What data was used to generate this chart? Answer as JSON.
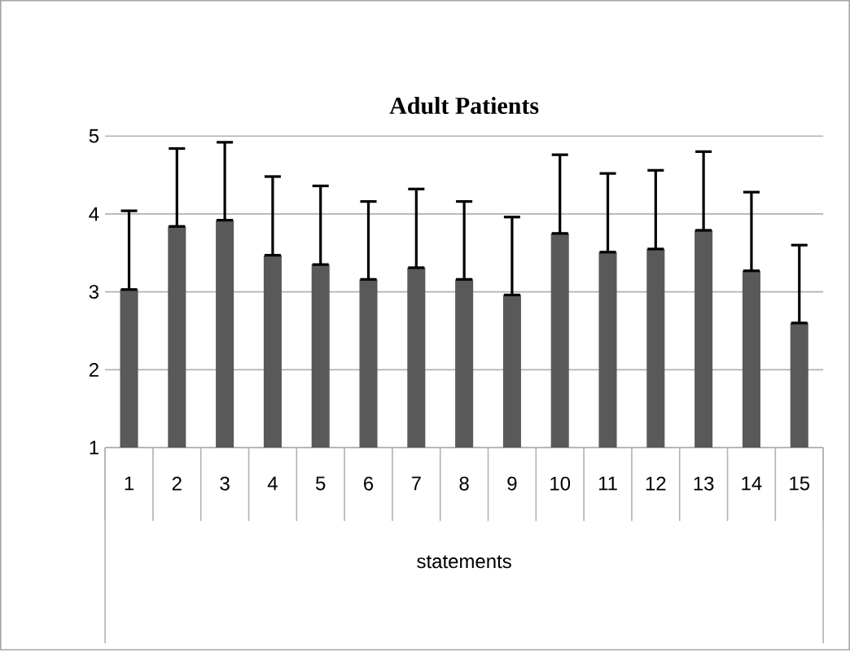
{
  "chart_data": {
    "type": "bar",
    "title": "Adult Patients",
    "xlabel": "statements",
    "categories": [
      "1",
      "2",
      "3",
      "4",
      "5",
      "6",
      "7",
      "8",
      "9",
      "10",
      "11",
      "12",
      "13",
      "14",
      "15"
    ],
    "values": [
      3.03,
      3.84,
      3.92,
      3.47,
      3.35,
      3.16,
      3.31,
      3.16,
      2.96,
      3.75,
      3.51,
      3.55,
      3.79,
      3.27,
      2.6
    ],
    "errors": [
      [
        3.03,
        4.04
      ],
      [
        3.84,
        4.84
      ],
      [
        3.92,
        4.92
      ],
      [
        3.47,
        4.48
      ],
      [
        3.35,
        4.36
      ],
      [
        3.16,
        4.16
      ],
      [
        3.31,
        4.32
      ],
      [
        3.16,
        4.16
      ],
      [
        2.96,
        3.96
      ],
      [
        3.75,
        4.76
      ],
      [
        3.51,
        4.52
      ],
      [
        3.55,
        4.56
      ],
      [
        3.79,
        4.8
      ],
      [
        3.27,
        4.28
      ],
      [
        2.6,
        3.6
      ]
    ],
    "color": "#595959",
    "ylim": [
      1,
      5
    ],
    "yticks": [
      1,
      2,
      3,
      4,
      5
    ],
    "grid": "y"
  }
}
